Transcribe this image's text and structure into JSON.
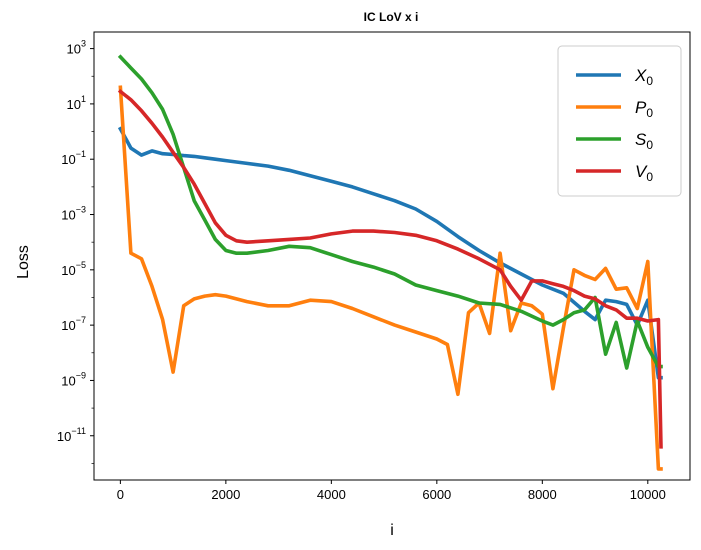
{
  "chart_data": {
    "type": "line",
    "title": "IC LoV x i",
    "xlabel": "i",
    "ylabel": "Loss",
    "xlim": [
      -500,
      10800
    ],
    "ylim_log10": [
      -12.6,
      3.6
    ],
    "y_scale": "log",
    "grid": false,
    "legend_position": "top-right",
    "x_ticks": [
      0,
      2000,
      4000,
      6000,
      8000,
      10000
    ],
    "x_tick_labels": [
      "0",
      "2000",
      "4000",
      "6000",
      "8000",
      "10000"
    ],
    "y_ticks_log10": [
      3,
      1,
      -1,
      -3,
      -5,
      -7,
      -9,
      -11
    ],
    "y_tick_base": "10",
    "y_tick_exponents": [
      "3",
      "1",
      "−1",
      "−3",
      "−5",
      "−7",
      "−9",
      "−11"
    ],
    "series": [
      {
        "name": "X",
        "subscript": "0",
        "color": "#1f77b4",
        "x": [
          0,
          200,
          400,
          600,
          800,
          1000,
          1200,
          1400,
          1600,
          1800,
          2000,
          2400,
          2800,
          3200,
          3600,
          4000,
          4400,
          4800,
          5200,
          5600,
          6000,
          6400,
          6800,
          7200,
          7600,
          8000,
          8400,
          8800,
          9000,
          9200,
          9400,
          9600,
          9800,
          10000,
          10200,
          10250
        ],
        "log10_y": [
          0.1,
          -0.6,
          -0.85,
          -0.7,
          -0.8,
          -0.83,
          -0.87,
          -0.9,
          -0.95,
          -1.0,
          -1.05,
          -1.15,
          -1.25,
          -1.4,
          -1.6,
          -1.8,
          -2.0,
          -2.25,
          -2.5,
          -2.8,
          -3.25,
          -3.8,
          -4.3,
          -4.75,
          -5.15,
          -5.55,
          -5.85,
          -6.5,
          -6.8,
          -6.1,
          -6.15,
          -6.25,
          -7.0,
          -6.1,
          -8.9,
          -8.9
        ]
      },
      {
        "name": "P",
        "subscript": "0",
        "color": "#ff7f0e",
        "x": [
          0,
          200,
          400,
          600,
          800,
          1000,
          1200,
          1400,
          1600,
          1800,
          2000,
          2400,
          2800,
          3200,
          3600,
          4000,
          4400,
          4800,
          5200,
          5600,
          6000,
          6200,
          6400,
          6600,
          6800,
          7000,
          7200,
          7400,
          7600,
          7800,
          8000,
          8200,
          8400,
          8600,
          8800,
          9000,
          9200,
          9400,
          9600,
          9800,
          10000,
          10200,
          10250
        ],
        "log10_y": [
          1.6,
          -4.4,
          -4.6,
          -5.6,
          -6.8,
          -8.7,
          -6.3,
          -6.05,
          -5.95,
          -5.9,
          -5.95,
          -6.15,
          -6.3,
          -6.3,
          -6.1,
          -6.15,
          -6.4,
          -6.7,
          -7.0,
          -7.25,
          -7.5,
          -7.7,
          -9.5,
          -6.55,
          -6.2,
          -7.3,
          -4.4,
          -7.2,
          -6.2,
          -6.3,
          -6.6,
          -9.3,
          -7.1,
          -5.0,
          -5.2,
          -5.35,
          -4.95,
          -5.7,
          -5.65,
          -6.4,
          -4.7,
          -12.2,
          -12.2
        ]
      },
      {
        "name": "S",
        "subscript": "0",
        "color": "#2ca02c",
        "x": [
          0,
          200,
          400,
          600,
          800,
          1000,
          1200,
          1400,
          1600,
          1800,
          2000,
          2200,
          2400,
          2800,
          3200,
          3600,
          4000,
          4400,
          4800,
          5200,
          5600,
          6000,
          6400,
          6800,
          7200,
          7600,
          8000,
          8200,
          8400,
          8600,
          8800,
          9000,
          9200,
          9400,
          9600,
          9800,
          10000,
          10200,
          10250
        ],
        "log10_y": [
          2.7,
          2.3,
          1.9,
          1.4,
          0.8,
          -0.1,
          -1.3,
          -2.5,
          -3.2,
          -3.9,
          -4.3,
          -4.4,
          -4.4,
          -4.3,
          -4.15,
          -4.2,
          -4.45,
          -4.7,
          -4.9,
          -5.15,
          -5.55,
          -5.75,
          -5.95,
          -6.2,
          -6.25,
          -6.5,
          -6.85,
          -7.0,
          -6.8,
          -6.55,
          -6.45,
          -6.0,
          -8.05,
          -6.9,
          -8.55,
          -6.85,
          -7.8,
          -8.5,
          -8.5
        ]
      },
      {
        "name": "V",
        "subscript": "0",
        "color": "#d62728",
        "x": [
          0,
          200,
          400,
          600,
          800,
          1000,
          1200,
          1400,
          1600,
          1800,
          2000,
          2200,
          2400,
          2800,
          3200,
          3600,
          4000,
          4400,
          4800,
          5200,
          5600,
          6000,
          6400,
          6800,
          7200,
          7400,
          7600,
          7800,
          8000,
          8200,
          8400,
          8600,
          8800,
          9000,
          9200,
          9400,
          9600,
          9800,
          10000,
          10200,
          10250
        ],
        "log10_y": [
          1.45,
          1.15,
          0.75,
          0.3,
          -0.2,
          -0.75,
          -1.3,
          -1.9,
          -2.6,
          -3.3,
          -3.75,
          -3.95,
          -4.0,
          -3.95,
          -3.9,
          -3.85,
          -3.7,
          -3.6,
          -3.6,
          -3.65,
          -3.75,
          -3.95,
          -4.25,
          -4.6,
          -5.0,
          -5.6,
          -6.1,
          -5.4,
          -5.4,
          -5.5,
          -5.6,
          -5.75,
          -5.95,
          -6.05,
          -6.3,
          -6.45,
          -6.75,
          -6.75,
          -6.85,
          -6.8,
          -11.4
        ]
      }
    ]
  }
}
